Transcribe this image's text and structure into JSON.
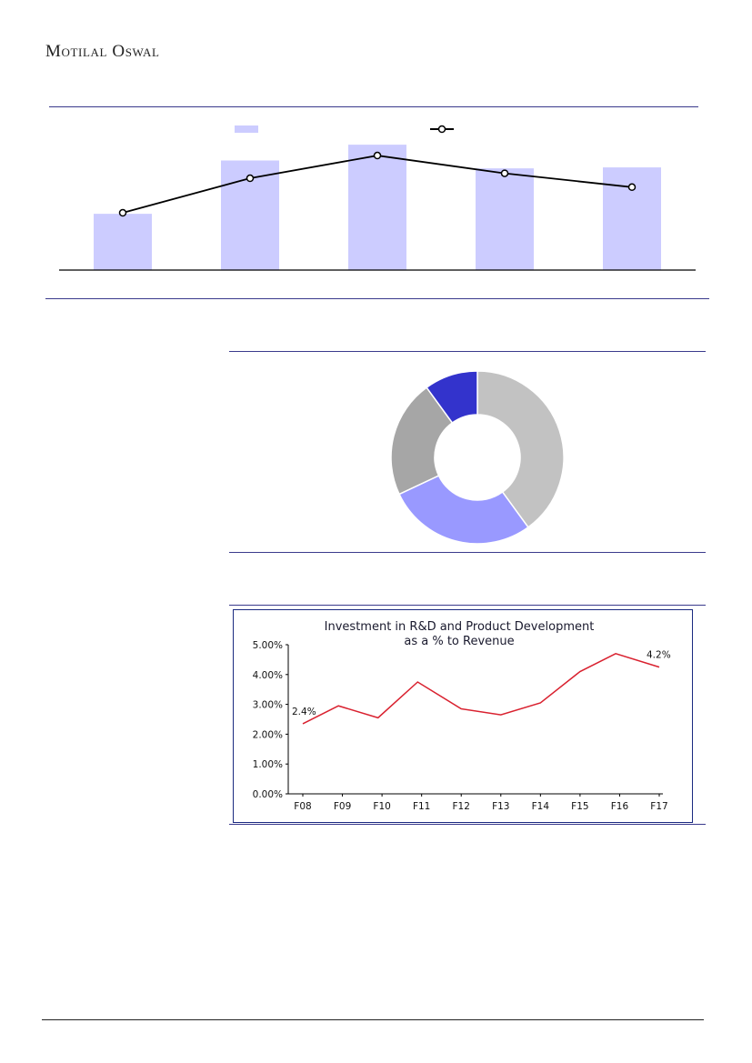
{
  "header": {
    "brand": "Motilal Oswal"
  },
  "colors": {
    "bar_fill": "#ccccff",
    "line_stroke": "#000000",
    "rule_blue": "#3a3a8c",
    "rd_line": "#d9212f",
    "donut": [
      "#c2c2c2",
      "#9999ff",
      "#a6a6a6",
      "#3333cc"
    ]
  },
  "chart_data": [
    {
      "type": "bar",
      "categories": [
        "",
        "",
        "",
        "",
        ""
      ],
      "series": [
        {
          "kind": "bar",
          "values": [
            57,
            111,
            127,
            103,
            104
          ]
        },
        {
          "kind": "line",
          "values": [
            58,
            93,
            116,
            98,
            84
          ]
        }
      ],
      "ylim": [
        0,
        140
      ],
      "legend": "top-center",
      "grid": false
    },
    {
      "type": "pie",
      "donut": true,
      "values": [
        40,
        28,
        22,
        10
      ],
      "grid": false
    },
    {
      "type": "line",
      "title": "Investment in R&D and Product Development as a % to Revenue",
      "title_lines": [
        "Investment in R&D and Product Development",
        "as a % to Revenue"
      ],
      "categories": [
        "F08",
        "F09",
        "F10",
        "F11",
        "F12",
        "F13",
        "F14",
        "F15",
        "F16",
        "F17"
      ],
      "y_ticks": [
        "0.00%",
        "1.00%",
        "2.00%",
        "3.00%",
        "4.00%",
        "5.00%"
      ],
      "ylim": [
        0,
        5
      ],
      "points": [
        {
          "x": 0.0,
          "y": 2.35
        },
        {
          "x": 0.9,
          "y": 2.95
        },
        {
          "x": 1.9,
          "y": 2.55
        },
        {
          "x": 2.9,
          "y": 3.75
        },
        {
          "x": 4.0,
          "y": 2.85
        },
        {
          "x": 5.0,
          "y": 2.65
        },
        {
          "x": 6.0,
          "y": 3.05
        },
        {
          "x": 7.0,
          "y": 4.1
        },
        {
          "x": 7.9,
          "y": 4.7
        },
        {
          "x": 9.0,
          "y": 4.25
        }
      ],
      "annotations": [
        {
          "label": "2.4%",
          "x": 0.0,
          "y": 2.35
        },
        {
          "label": "4.2%",
          "x": 9.0,
          "y": 4.25
        }
      ],
      "grid": false
    }
  ]
}
